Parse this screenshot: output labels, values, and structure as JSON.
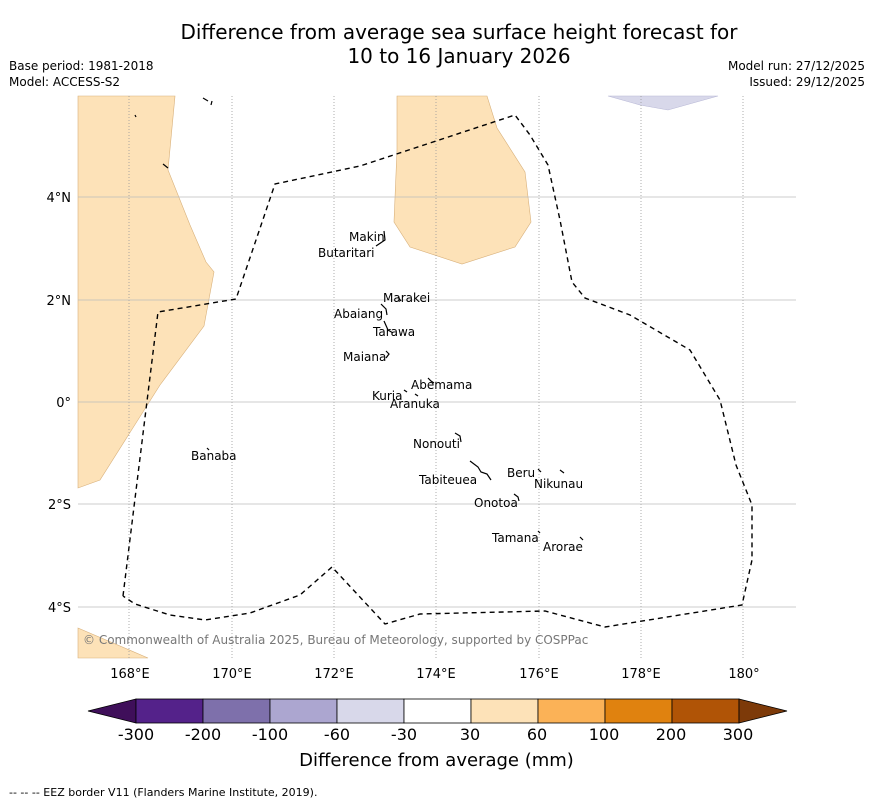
{
  "title_line1": "Difference from average sea surface height forecast for",
  "title_line2": "10 to 16 January 2026",
  "meta_left": {
    "base_period": "Base period: 1981-2018",
    "model": "Model: ACCESS-S2"
  },
  "meta_right": {
    "model_run": "Model run: 27/12/2025",
    "issued": "Issued: 29/12/2025"
  },
  "map": {
    "lon_ticks": [
      "168°E",
      "170°E",
      "172°E",
      "174°E",
      "176°E",
      "178°E",
      "180°"
    ],
    "lat_ticks": [
      "4°N",
      "2°N",
      "0°",
      "2°S",
      "4°S"
    ],
    "places": [
      {
        "name": "Makin",
        "lon": 173.0,
        "lat": 3.3
      },
      {
        "name": "Butaritari",
        "lon": 172.9,
        "lat": 3.1
      },
      {
        "name": "Marakei",
        "lon": 173.3,
        "lat": 2.0
      },
      {
        "name": "Abaiang",
        "lon": 173.0,
        "lat": 1.8
      },
      {
        "name": "Tarawa",
        "lon": 173.0,
        "lat": 1.4
      },
      {
        "name": "Maiana",
        "lon": 173.0,
        "lat": 1.0
      },
      {
        "name": "Abemama",
        "lon": 173.9,
        "lat": 0.4
      },
      {
        "name": "Kuria",
        "lon": 173.4,
        "lat": 0.2
      },
      {
        "name": "Aranuka",
        "lon": 173.6,
        "lat": 0.2
      },
      {
        "name": "Nonouti",
        "lon": 174.4,
        "lat": -0.7
      },
      {
        "name": "Banaba",
        "lon": 169.5,
        "lat": -0.9
      },
      {
        "name": "Tabiteuea",
        "lon": 174.9,
        "lat": -1.3
      },
      {
        "name": "Beru",
        "lon": 176.0,
        "lat": -1.3
      },
      {
        "name": "Nikunau",
        "lon": 176.5,
        "lat": -1.4
      },
      {
        "name": "Onotoa",
        "lon": 175.6,
        "lat": -1.8
      },
      {
        "name": "Tamana",
        "lon": 176.0,
        "lat": -2.5
      },
      {
        "name": "Arorae",
        "lon": 176.8,
        "lat": -2.6
      }
    ],
    "copyright": "© Commonwealth of Australia 2025, Bureau of Meteorology, supported by COSPPac"
  },
  "colorbar": {
    "ticks": [
      "-300",
      "-200",
      "-100",
      "-60",
      "-30",
      "30",
      "60",
      "100",
      "200",
      "300"
    ],
    "colors": [
      "#3f0f5a",
      "#54228a",
      "#7e70ab",
      "#aca6d0",
      "#d8d8ea",
      "#ffffff",
      "#fde2b8",
      "#fbb257",
      "#e0820f",
      "#b05406",
      "#7d3a09"
    ],
    "label": "Difference from average (mm)"
  },
  "footer": "--  --  -- EEZ border V11 (Flanders Marine Institute, 2019)."
}
